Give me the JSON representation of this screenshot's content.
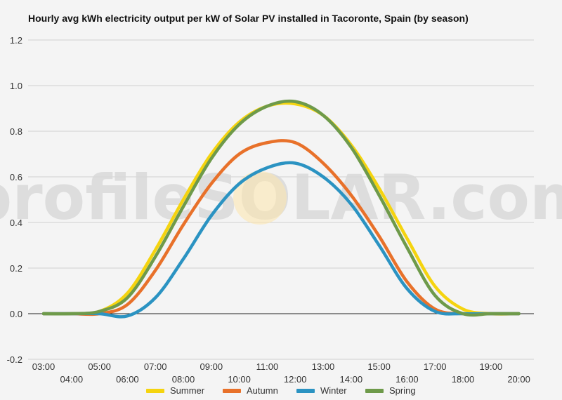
{
  "chart_data": {
    "type": "line",
    "title": "Hourly avg kWh electricity output per kW of Solar PV installed in Tacoronte, Spain (by season)",
    "watermark": "profileSOLAR.com",
    "ylim": [
      -0.2,
      1.2
    ],
    "yticks": [
      "-0.2",
      "0.0",
      "0.2",
      "0.4",
      "0.6",
      "0.8",
      "1.0",
      "1.2"
    ],
    "grid": true,
    "legend_position": "bottom",
    "categories": [
      "03:00",
      "04:00",
      "05:00",
      "06:00",
      "07:00",
      "08:00",
      "09:00",
      "10:00",
      "11:00",
      "12:00",
      "13:00",
      "14:00",
      "15:00",
      "16:00",
      "17:00",
      "18:00",
      "19:00",
      "20:00"
    ],
    "series": [
      {
        "name": "Summer",
        "color": "#f5d40f",
        "values": [
          0.0,
          0.0,
          0.01,
          0.09,
          0.28,
          0.5,
          0.7,
          0.84,
          0.91,
          0.92,
          0.87,
          0.74,
          0.55,
          0.33,
          0.12,
          0.02,
          0.0,
          0.0
        ]
      },
      {
        "name": "Autumn",
        "color": "#e8712a",
        "values": [
          0.0,
          0.0,
          0.0,
          0.04,
          0.19,
          0.39,
          0.57,
          0.7,
          0.75,
          0.75,
          0.66,
          0.52,
          0.34,
          0.14,
          0.02,
          0.0,
          0.0,
          0.0
        ]
      },
      {
        "name": "Winter",
        "color": "#2b93c2",
        "values": [
          0.0,
          0.0,
          0.0,
          -0.01,
          0.07,
          0.24,
          0.43,
          0.57,
          0.64,
          0.66,
          0.6,
          0.48,
          0.3,
          0.11,
          0.01,
          0.0,
          0.0,
          0.0
        ]
      },
      {
        "name": "Spring",
        "color": "#6e9a4a",
        "values": [
          0.0,
          0.0,
          0.01,
          0.07,
          0.25,
          0.47,
          0.68,
          0.83,
          0.91,
          0.93,
          0.87,
          0.73,
          0.52,
          0.29,
          0.08,
          0.0,
          0.0,
          0.0
        ]
      }
    ]
  }
}
